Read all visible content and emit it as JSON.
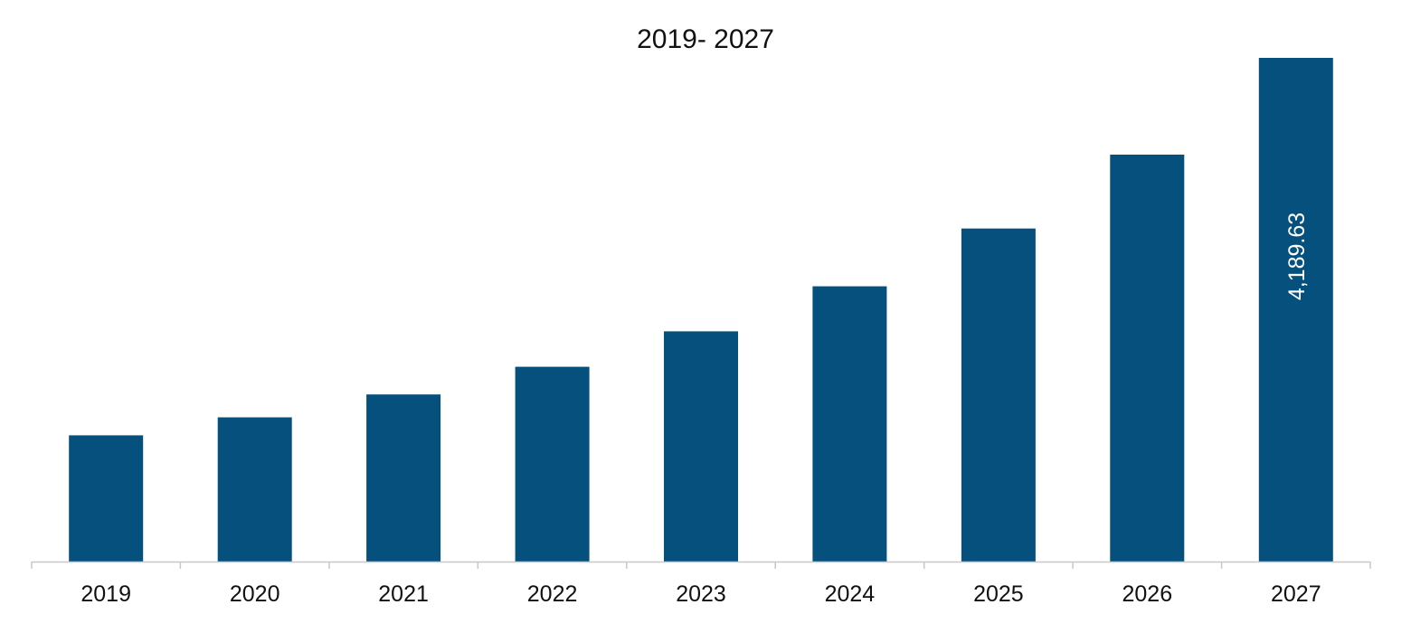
{
  "chart_data": {
    "type": "bar",
    "title": "2019- 2027",
    "xlabel": "",
    "ylabel": "",
    "categories": [
      "2019",
      "2020",
      "2021",
      "2022",
      "2023",
      "2024",
      "2025",
      "2026",
      "2027"
    ],
    "values": [
      1050,
      1200,
      1390,
      1620,
      1915,
      2290,
      2770,
      3385,
      4189.63
    ],
    "data_labels": [
      "",
      "",
      "",
      "",
      "",
      "",
      "",
      "",
      "4,189.63"
    ],
    "ylim": [
      0,
      4450
    ],
    "grid": false,
    "legend": "none",
    "bar_color": "#06507e",
    "axis_color": "#c8c8c8"
  }
}
